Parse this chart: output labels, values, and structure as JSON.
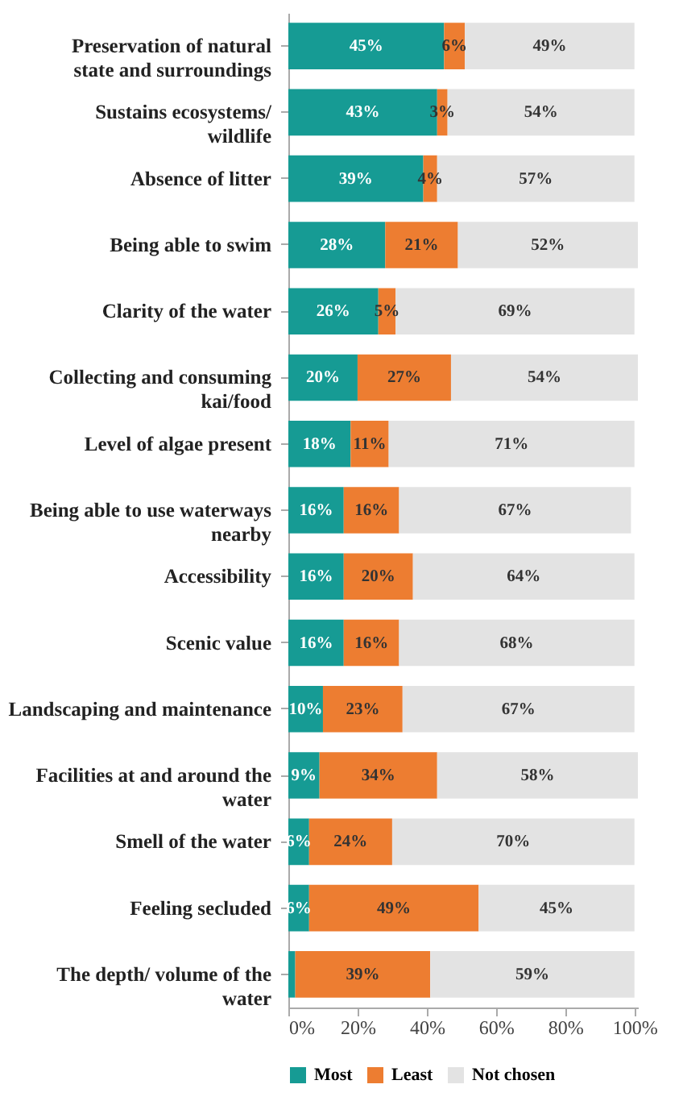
{
  "chart_data": {
    "type": "bar",
    "orientation": "horizontal",
    "stacked": true,
    "categories": [
      "Preservation of natural state and surroundings",
      "Sustains ecosystems/ wildlife",
      "Absence of litter",
      "Being able to swim",
      "Clarity of the water",
      "Collecting and consuming kai/food",
      "Level of algae present",
      "Being able to use waterways nearby",
      "Accessibility",
      "Scenic value",
      "Landscaping and maintenance",
      "Facilities at and around the water",
      "Smell of the water",
      "Feeling secluded",
      "The depth/ volume of the water"
    ],
    "series": [
      {
        "name": "Most",
        "color": "#169b94",
        "values": [
          45,
          43,
          39,
          28,
          26,
          20,
          18,
          16,
          16,
          16,
          10,
          9,
          6,
          6,
          2
        ],
        "value_labels": [
          "45%",
          "43%",
          "39%",
          "28%",
          "26%",
          "20%",
          "18%",
          "16%",
          "16%",
          "16%",
          "10%",
          "9%",
          "6%",
          "6%",
          null
        ]
      },
      {
        "name": "Least",
        "color": "#ed7d31",
        "values": [
          6,
          3,
          4,
          21,
          5,
          27,
          11,
          16,
          20,
          16,
          23,
          34,
          24,
          49,
          39
        ],
        "value_labels": [
          "6%",
          "3%",
          "4%",
          "21%",
          "5%",
          "27%",
          "11%",
          "16%",
          "20%",
          "16%",
          "23%",
          "34%",
          "24%",
          "49%",
          "39%"
        ]
      },
      {
        "name": "Not chosen",
        "color": "#e3e3e3",
        "values": [
          49,
          54,
          57,
          52,
          69,
          54,
          71,
          67,
          64,
          68,
          67,
          58,
          70,
          45,
          59
        ],
        "value_labels": [
          "49%",
          "54%",
          "57%",
          "52%",
          "69%",
          "54%",
          "71%",
          "67%",
          "64%",
          "68%",
          "67%",
          "58%",
          "70%",
          "45%",
          "59%"
        ]
      }
    ],
    "xlim": [
      0,
      101
    ],
    "xticks": [
      {
        "value": 0,
        "label": "0%"
      },
      {
        "value": 20,
        "label": "20%"
      },
      {
        "value": 40,
        "label": "40%"
      },
      {
        "value": 60,
        "label": "60%"
      },
      {
        "value": 80,
        "label": "80%"
      },
      {
        "value": 100,
        "label": "100%"
      }
    ],
    "grid": false,
    "legend": "bottom"
  }
}
